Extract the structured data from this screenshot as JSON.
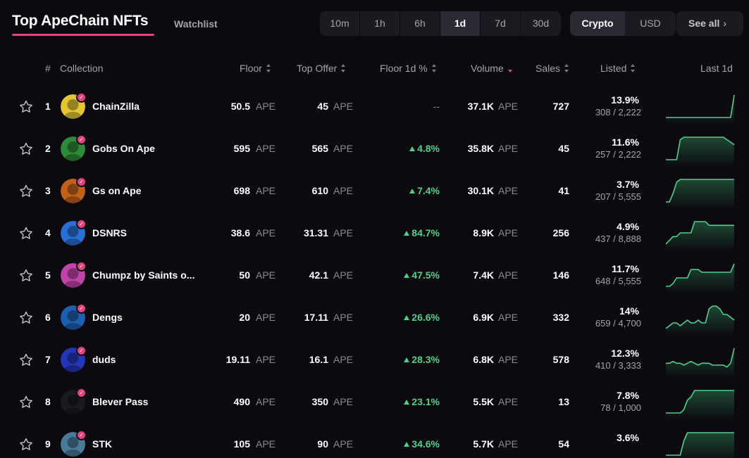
{
  "header": {
    "title": "Top ApeChain NFTs",
    "watchlist": "Watchlist",
    "time_ranges": [
      "10m",
      "1h",
      "6h",
      "1d",
      "7d",
      "30d"
    ],
    "active_time_range": "1d",
    "currencies": [
      "Crypto",
      "USD"
    ],
    "active_currency": "Crypto",
    "see_all": "See all",
    "see_all_chevron": "›"
  },
  "columns": {
    "rank": "#",
    "collection": "Collection",
    "floor": "Floor",
    "top_offer": "Top Offer",
    "floor_change": "Floor 1d %",
    "volume": "Volume",
    "sales": "Sales",
    "listed": "Listed",
    "last": "Last 1d"
  },
  "colors": {
    "accent": "#e0437f",
    "positive": "#4fd08b",
    "background": "#0c0a0f"
  },
  "rows": [
    {
      "rank": "1",
      "name": "ChainZilla",
      "floor": "50.5",
      "floor_unit": "APE",
      "top_offer": "45",
      "offer_unit": "APE",
      "change": "--",
      "volume": "37.1K",
      "volume_unit": "APE",
      "sales": "727",
      "listed_pct": "13.9%",
      "listed_count": "308 / 2,222",
      "avatar_color": "#e4c634",
      "spark": [
        0,
        0,
        0,
        0,
        0,
        0,
        0,
        0,
        0,
        0,
        0,
        0,
        0,
        0,
        0,
        0,
        0,
        0,
        0,
        10
      ]
    },
    {
      "rank": "2",
      "name": "Gobs On Ape",
      "floor": "595",
      "floor_unit": "APE",
      "top_offer": "565",
      "offer_unit": "APE",
      "change": "4.8%",
      "volume": "35.8K",
      "volume_unit": "APE",
      "sales": "45",
      "listed_pct": "11.6%",
      "listed_count": "257 / 2,222",
      "avatar_color": "#2f8a3a",
      "spark": [
        0,
        0,
        0,
        0,
        8,
        9,
        9,
        9,
        9,
        9,
        9,
        9,
        9,
        9,
        9,
        9,
        9,
        8,
        7,
        6
      ]
    },
    {
      "rank": "3",
      "name": "Gs on Ape",
      "floor": "698",
      "floor_unit": "APE",
      "top_offer": "610",
      "offer_unit": "APE",
      "change": "7.4%",
      "volume": "30.1K",
      "volume_unit": "APE",
      "sales": "41",
      "listed_pct": "3.7%",
      "listed_count": "207 / 5,555",
      "avatar_color": "#c2611e",
      "spark": [
        0,
        0,
        3,
        7,
        8,
        8,
        8,
        8,
        8,
        8,
        8,
        8,
        8,
        8,
        8,
        8,
        8,
        8,
        8,
        8
      ]
    },
    {
      "rank": "4",
      "name": "DSNRS",
      "floor": "38.6",
      "floor_unit": "APE",
      "top_offer": "31.31",
      "offer_unit": "APE",
      "change": "84.7%",
      "volume": "8.9K",
      "volume_unit": "APE",
      "sales": "256",
      "listed_pct": "4.9%",
      "listed_count": "437 / 8,888",
      "avatar_color": "#2a6fd6",
      "spark": [
        0,
        1,
        2,
        2,
        3,
        3,
        3,
        3,
        6,
        6,
        6,
        6,
        5,
        5,
        5,
        5,
        5,
        5,
        5,
        5
      ]
    },
    {
      "rank": "5",
      "name": "Chumpz by Saints o...",
      "floor": "50",
      "floor_unit": "APE",
      "top_offer": "42.1",
      "offer_unit": "APE",
      "change": "47.5%",
      "volume": "7.4K",
      "volume_unit": "APE",
      "sales": "146",
      "listed_pct": "11.7%",
      "listed_count": "648 / 5,555",
      "avatar_color": "#c244a8",
      "spark": [
        0,
        0,
        1,
        3,
        3,
        3,
        3,
        6,
        6,
        6,
        5,
        5,
        5,
        5,
        5,
        5,
        5,
        5,
        5,
        8
      ]
    },
    {
      "rank": "6",
      "name": "Dengs",
      "floor": "20",
      "floor_unit": "APE",
      "top_offer": "17.11",
      "offer_unit": "APE",
      "change": "26.6%",
      "volume": "6.9K",
      "volume_unit": "APE",
      "sales": "332",
      "listed_pct": "14%",
      "listed_count": "659 / 4,700",
      "avatar_color": "#1f5fb0",
      "spark": [
        0,
        1,
        2,
        2,
        1,
        2,
        3,
        2,
        2,
        3,
        2,
        2,
        7,
        8,
        8,
        7,
        5,
        5,
        4,
        3
      ]
    },
    {
      "rank": "7",
      "name": "duds",
      "floor": "19.11",
      "floor_unit": "APE",
      "top_offer": "16.1",
      "offer_unit": "APE",
      "change": "28.3%",
      "volume": "6.8K",
      "volume_unit": "APE",
      "sales": "578",
      "listed_pct": "12.3%",
      "listed_count": "410 / 3,333",
      "avatar_color": "#2436b8",
      "spark": [
        4,
        4,
        5,
        4,
        4,
        3,
        4,
        5,
        4,
        3,
        4,
        4,
        4,
        3,
        3,
        3,
        3,
        2,
        4,
        12
      ]
    },
    {
      "rank": "8",
      "name": "Blever Pass",
      "floor": "490",
      "floor_unit": "APE",
      "top_offer": "350",
      "offer_unit": "APE",
      "change": "23.1%",
      "volume": "5.5K",
      "volume_unit": "APE",
      "sales": "13",
      "listed_pct": "7.8%",
      "listed_count": "78 / 1,000",
      "avatar_color": "#1a1a1f",
      "spark": [
        0,
        0,
        0,
        0,
        0,
        1,
        4,
        5,
        7,
        7,
        7,
        7,
        7,
        7,
        7,
        7,
        7,
        7,
        7,
        7
      ]
    },
    {
      "rank": "9",
      "name": "STK",
      "floor": "105",
      "floor_unit": "APE",
      "top_offer": "90",
      "offer_unit": "APE",
      "change": "34.6%",
      "volume": "5.7K",
      "volume_unit": "APE",
      "sales": "54",
      "listed_pct": "3.6%",
      "listed_count": "",
      "avatar_color": "#4a7a9a",
      "spark": [
        0,
        0,
        0,
        0,
        0,
        5,
        8,
        8,
        8,
        8,
        8,
        8,
        8,
        8,
        8,
        8,
        8,
        8,
        8,
        8
      ]
    }
  ]
}
